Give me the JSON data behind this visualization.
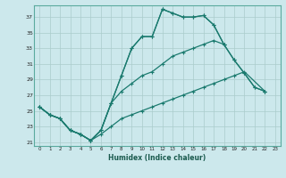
{
  "xlabel": "Humidex (Indice chaleur)",
  "bg_color": "#cce8ec",
  "grid_color": "#aacccc",
  "line_color": "#1a7a6e",
  "xlim": [
    -0.5,
    23.5
  ],
  "ylim": [
    20.5,
    38.5
  ],
  "xticks": [
    0,
    1,
    2,
    3,
    4,
    5,
    6,
    7,
    8,
    9,
    10,
    11,
    12,
    13,
    14,
    15,
    16,
    17,
    18,
    19,
    20,
    21,
    22,
    23
  ],
  "yticks": [
    21,
    23,
    25,
    27,
    29,
    31,
    33,
    35,
    37
  ],
  "line1_x": [
    0,
    1,
    2,
    3,
    4,
    5,
    6,
    7,
    8,
    9,
    10,
    11,
    12,
    13,
    14,
    15,
    16,
    17,
    18
  ],
  "line1_y": [
    25.5,
    24.5,
    24.0,
    22.5,
    22.0,
    21.2,
    22.5,
    26.0,
    29.5,
    33.0,
    34.5,
    34.5,
    38.0,
    37.5,
    37.0,
    37.0,
    37.2,
    36.0,
    33.5
  ],
  "line2_x": [
    0,
    1,
    2,
    3,
    4,
    5,
    6,
    7,
    8,
    9,
    10,
    11,
    12,
    13,
    14,
    15,
    16,
    17,
    18,
    19,
    20,
    21,
    22
  ],
  "line2_y": [
    25.5,
    24.5,
    24.0,
    22.5,
    22.0,
    21.2,
    22.5,
    26.0,
    29.5,
    33.0,
    34.5,
    34.5,
    38.0,
    37.5,
    37.0,
    37.0,
    37.2,
    36.0,
    33.5,
    31.5,
    29.8,
    28.0,
    27.5
  ],
  "line3_x": [
    0,
    1,
    2,
    3,
    4,
    5,
    6,
    7,
    8,
    9,
    10,
    11,
    12,
    13,
    14,
    15,
    16,
    17,
    18,
    19,
    20,
    21,
    22
  ],
  "line3_y": [
    25.5,
    24.5,
    24.0,
    22.5,
    22.0,
    21.2,
    22.5,
    26.0,
    27.5,
    28.5,
    29.5,
    30.0,
    31.0,
    32.0,
    32.5,
    33.0,
    33.5,
    34.0,
    33.5,
    31.5,
    29.8,
    28.0,
    27.5
  ],
  "line4_x": [
    0,
    1,
    2,
    3,
    4,
    5,
    6,
    7,
    8,
    9,
    10,
    11,
    12,
    13,
    14,
    15,
    16,
    17,
    18,
    19,
    20,
    22
  ],
  "line4_y": [
    25.5,
    24.5,
    24.0,
    22.5,
    22.0,
    21.2,
    22.0,
    23.0,
    24.0,
    24.5,
    25.0,
    25.5,
    26.0,
    26.5,
    27.0,
    27.5,
    28.0,
    28.5,
    29.0,
    29.5,
    30.0,
    27.5
  ]
}
